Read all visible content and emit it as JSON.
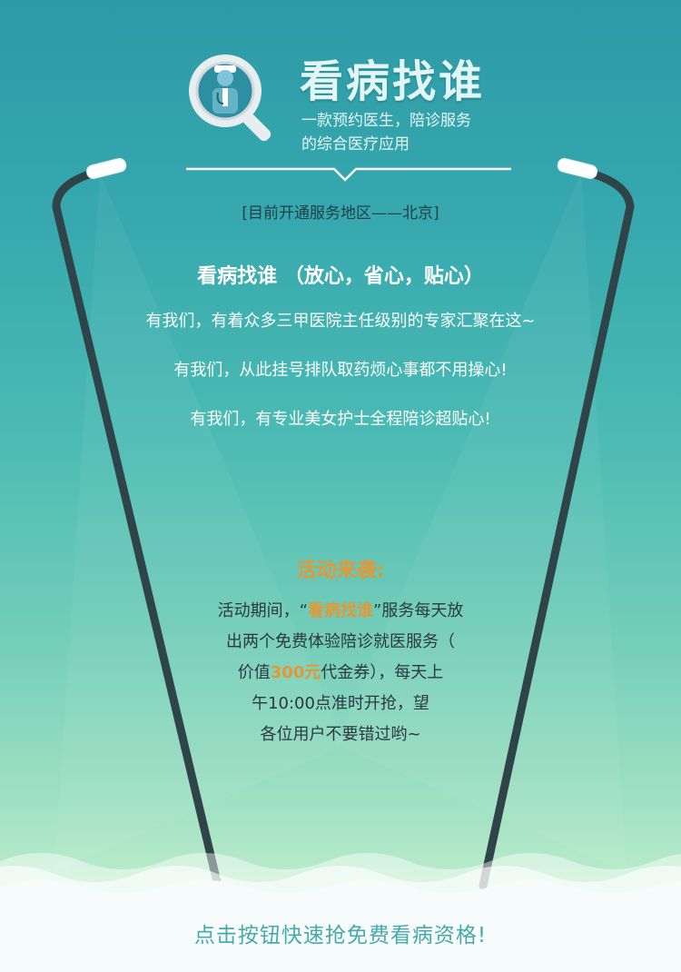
{
  "header": {
    "app_name": "看病找谁",
    "tagline_line1": "一款预约医生，陪诊服务",
    "tagline_line2": "的综合医疗应用",
    "logo_icon": "magnifier-doctor-icon"
  },
  "region": "[目前开通服务地区——北京]",
  "intro": {
    "heading": "看病找谁 （放心，省心，贴心）",
    "lines": [
      "有我们，有着众多三甲医院主任级别的专家汇聚在这~",
      "有我们，从此挂号排队取药烦心事都不用操心!",
      "有我们，有专业美女护士全程陪诊超贴心!"
    ]
  },
  "promo": {
    "title": "活动来袭:",
    "line1_a": "活动期间，“",
    "line1_hl": "看病找谁",
    "line1_b": "”服务每天放",
    "line2": "出两个免费体验陪诊就医服务（",
    "line3_a": "价值",
    "line3_hl": "300元",
    "line3_b": "代金券），每天上",
    "line4": "午10:00点准时开抢，望",
    "line5": "各位用户不要错过哟~"
  },
  "cta": {
    "label": "点击按钮快速抢免费看病资格!"
  },
  "colors": {
    "accent_orange": "#e69633",
    "teal": "#2d9aa7",
    "lamp_pole": "#2f4448",
    "cta_text": "#48a9ad"
  }
}
